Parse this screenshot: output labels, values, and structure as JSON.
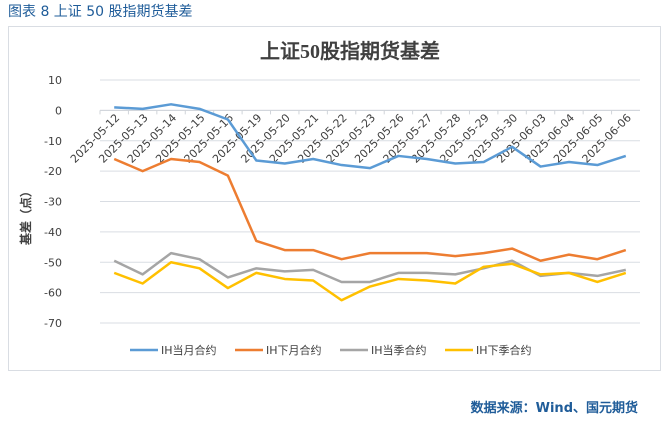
{
  "header": {
    "caption": "图表 8  上证 50 股指期货基差"
  },
  "source": "数据来源：Wind、国元期货",
  "chart_data": {
    "type": "line",
    "title": "上证50股指期货基差",
    "ylabel": "基差（点）",
    "xlabel": "",
    "ylim": [
      -70,
      10
    ],
    "yticks": [
      10,
      0,
      -10,
      -20,
      -30,
      -40,
      -50,
      -60,
      -70
    ],
    "grid": true,
    "legend": "bottom",
    "categories": [
      "2025-05-12",
      "2025-05-13",
      "2025-05-14",
      "2025-05-15",
      "2025-05-16",
      "2025-05-19",
      "2025-05-20",
      "2025-05-21",
      "2025-05-22",
      "2025-05-23",
      "2025-05-26",
      "2025-05-27",
      "2025-05-28",
      "2025-05-29",
      "2025-05-30",
      "2025-06-03",
      "2025-06-04",
      "2025-06-05",
      "2025-06-06"
    ],
    "series": [
      {
        "name": "IH当月合约",
        "color": "#5b9bd5",
        "values": [
          1,
          0.5,
          2,
          0.5,
          -3,
          -16.5,
          -17.5,
          -16,
          -18,
          -19,
          -15,
          -16,
          -17.5,
          -17,
          -12,
          -18.5,
          -17,
          -18,
          -15
        ]
      },
      {
        "name": "IH下月合约",
        "color": "#ed7d31",
        "values": [
          -16,
          -20,
          -16,
          -17,
          -21.5,
          -43,
          -46,
          -46,
          -49,
          -47,
          -47,
          -47,
          -48,
          -47,
          -45.5,
          -49.5,
          -47.5,
          -49,
          -46
        ]
      },
      {
        "name": "IH当季合约",
        "color": "#a5a5a5",
        "values": [
          -49.5,
          -54,
          -47,
          -49,
          -55,
          -52,
          -53,
          -52.5,
          -56.5,
          -56.5,
          -53.5,
          -53.5,
          -54,
          -52,
          -49.5,
          -54.5,
          -53.5,
          -54.5,
          -52.5
        ]
      },
      {
        "name": "IH下季合约",
        "color": "#ffc000",
        "values": [
          -53.5,
          -57,
          -50,
          -52,
          -58.5,
          -53.5,
          -55.5,
          -56,
          -62.5,
          -58,
          -55.5,
          -56,
          -57,
          -51.5,
          -50.5,
          -54,
          -53.5,
          -56.5,
          -53.5
        ]
      }
    ]
  }
}
